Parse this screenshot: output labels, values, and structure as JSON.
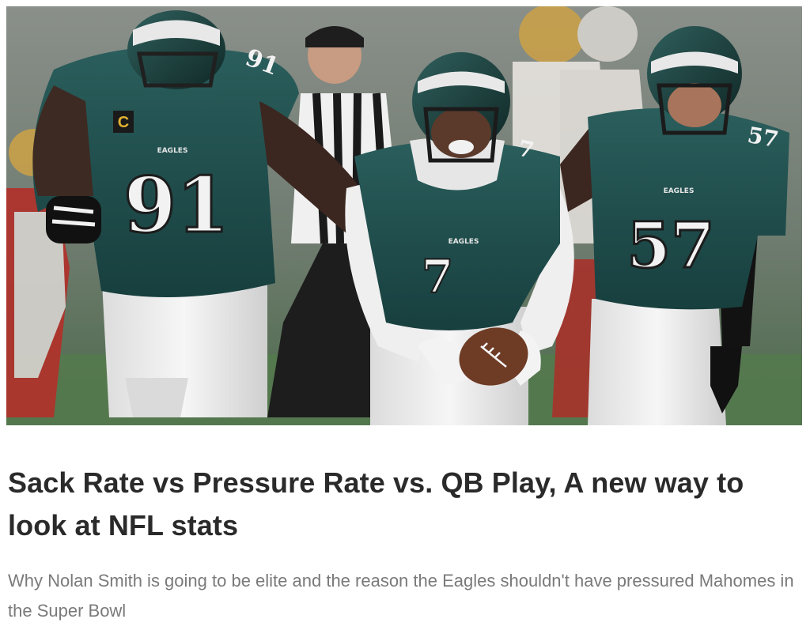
{
  "article": {
    "hero_image": {
      "jersey_numbers": [
        "91",
        "7",
        "57",
        "91",
        "7",
        "57"
      ],
      "team_wordmark": "EAGLES",
      "captain_patch": "C"
    },
    "title": "Sack Rate vs Pressure Rate vs. QB Play, A new way to look at NFL stats",
    "subtitle": "Why Nolan Smith is going to be elite and the reason the Eagles shouldn't have pressured Mahomes in the Super Bowl"
  },
  "colors": {
    "jersey_green": "#1f4e4d",
    "pants_white": "#eeeeee",
    "title_text": "#2a2a2a",
    "subtitle_text": "#7a7a7a"
  }
}
